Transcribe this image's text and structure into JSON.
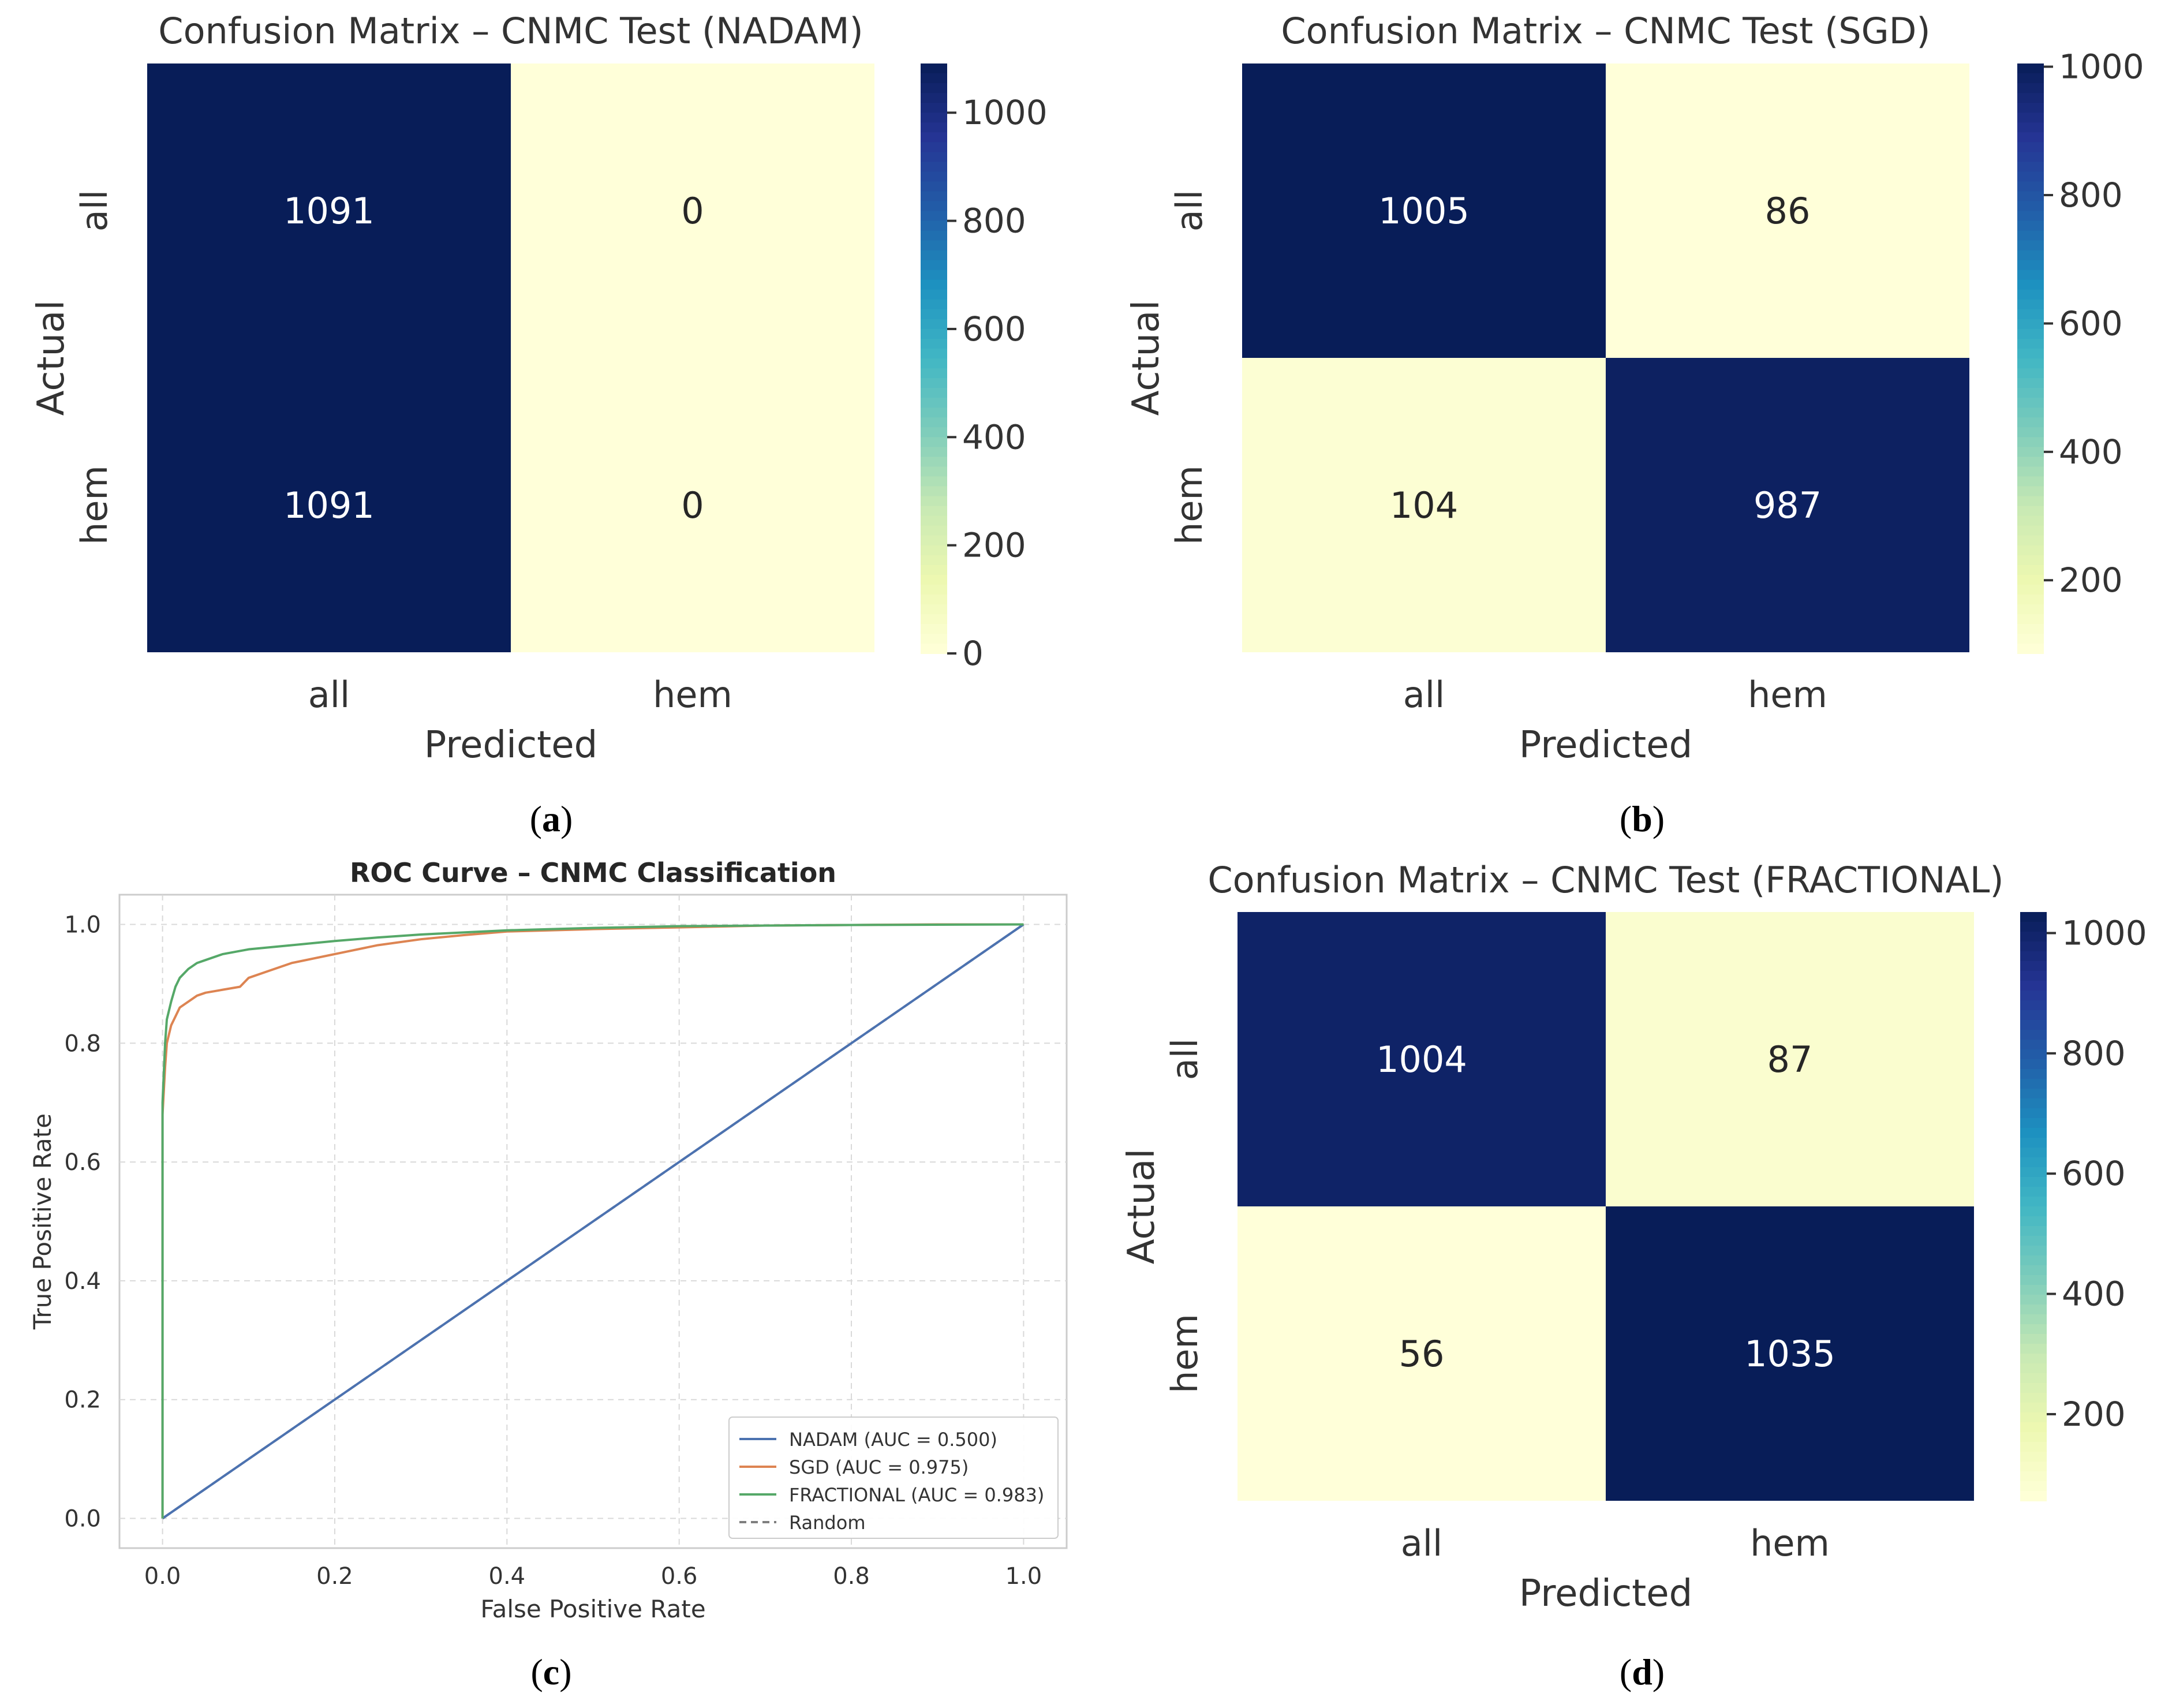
{
  "panels": {
    "a": {
      "caption": "a"
    },
    "b": {
      "caption": "b"
    },
    "c": {
      "caption": "c"
    },
    "d": {
      "caption": "d"
    }
  },
  "chart_data": [
    {
      "id": "a",
      "type": "heatmap",
      "title": "Confusion Matrix – CNMC Test (NADAM)",
      "xlabel": "Predicted",
      "ylabel": "Actual",
      "row_labels": [
        "all",
        "hem"
      ],
      "col_labels": [
        "all",
        "hem"
      ],
      "values": [
        [
          1091,
          0
        ],
        [
          1091,
          0
        ]
      ],
      "colormap": "YlGnBu",
      "colorbar": {
        "min": 0,
        "max": 1091,
        "ticks": [
          0,
          200,
          400,
          600,
          800,
          1000
        ]
      }
    },
    {
      "id": "b",
      "type": "heatmap",
      "title": "Confusion Matrix – CNMC Test (SGD)",
      "xlabel": "Predicted",
      "ylabel": "Actual",
      "row_labels": [
        "all",
        "hem"
      ],
      "col_labels": [
        "all",
        "hem"
      ],
      "values": [
        [
          1005,
          86
        ],
        [
          104,
          987
        ]
      ],
      "colormap": "YlGnBu",
      "colorbar": {
        "min": 86,
        "max": 1005,
        "ticks": [
          200,
          400,
          600,
          800,
          1000
        ]
      }
    },
    {
      "id": "c",
      "type": "line",
      "title": "ROC Curve – CNMC Classification",
      "xlabel": "False Positive Rate",
      "ylabel": "True Positive Rate",
      "xlim": [
        -0.05,
        1.05
      ],
      "ylim": [
        -0.05,
        1.05
      ],
      "xticks": [
        "0.0",
        "0.2",
        "0.4",
        "0.6",
        "0.8",
        "1.0"
      ],
      "yticks": [
        "0.0",
        "0.2",
        "0.4",
        "0.6",
        "0.8",
        "1.0"
      ],
      "grid": true,
      "legend_position": "lower right",
      "series": [
        {
          "name": "NADAM (AUC = 0.500)",
          "color": "#4c72b0",
          "style": "solid",
          "x": [
            0,
            1
          ],
          "y": [
            0,
            1
          ]
        },
        {
          "name": "SGD (AUC = 0.975)",
          "color": "#dd8452",
          "style": "solid",
          "x": [
            0,
            0.0,
            0.003,
            0.005,
            0.01,
            0.015,
            0.02,
            0.03,
            0.04,
            0.05,
            0.07,
            0.09,
            0.1,
            0.12,
            0.15,
            0.2,
            0.25,
            0.3,
            0.35,
            0.4,
            0.5,
            0.6,
            0.7,
            0.8,
            0.9,
            1.0
          ],
          "y": [
            0,
            0.68,
            0.76,
            0.8,
            0.83,
            0.845,
            0.86,
            0.87,
            0.88,
            0.885,
            0.89,
            0.895,
            0.91,
            0.92,
            0.935,
            0.95,
            0.965,
            0.975,
            0.982,
            0.988,
            0.992,
            0.995,
            0.998,
            0.999,
            1.0,
            1.0
          ]
        },
        {
          "name": "FRACTIONAL (AUC = 0.983)",
          "color": "#55a868",
          "style": "solid",
          "x": [
            0,
            0.0,
            0.003,
            0.005,
            0.01,
            0.015,
            0.02,
            0.03,
            0.04,
            0.05,
            0.07,
            0.1,
            0.15,
            0.2,
            0.25,
            0.3,
            0.4,
            0.5,
            0.6,
            0.8,
            1.0
          ],
          "y": [
            0,
            0.7,
            0.8,
            0.84,
            0.87,
            0.895,
            0.91,
            0.925,
            0.935,
            0.94,
            0.95,
            0.958,
            0.965,
            0.972,
            0.978,
            0.983,
            0.99,
            0.994,
            0.997,
            0.999,
            1.0
          ]
        },
        {
          "name": "Random",
          "color": "#7f7f7f",
          "style": "dashed",
          "x": [
            0,
            1
          ],
          "y": [
            0,
            1
          ]
        }
      ]
    },
    {
      "id": "d",
      "type": "heatmap",
      "title": "Confusion Matrix – CNMC Test (FRACTIONAL)",
      "xlabel": "Predicted",
      "ylabel": "Actual",
      "row_labels": [
        "all",
        "hem"
      ],
      "col_labels": [
        "all",
        "hem"
      ],
      "values": [
        [
          1004,
          87
        ],
        [
          56,
          1035
        ]
      ],
      "colormap": "YlGnBu",
      "colorbar": {
        "min": 56,
        "max": 1035,
        "ticks": [
          200,
          400,
          600,
          800,
          1000
        ]
      }
    }
  ]
}
